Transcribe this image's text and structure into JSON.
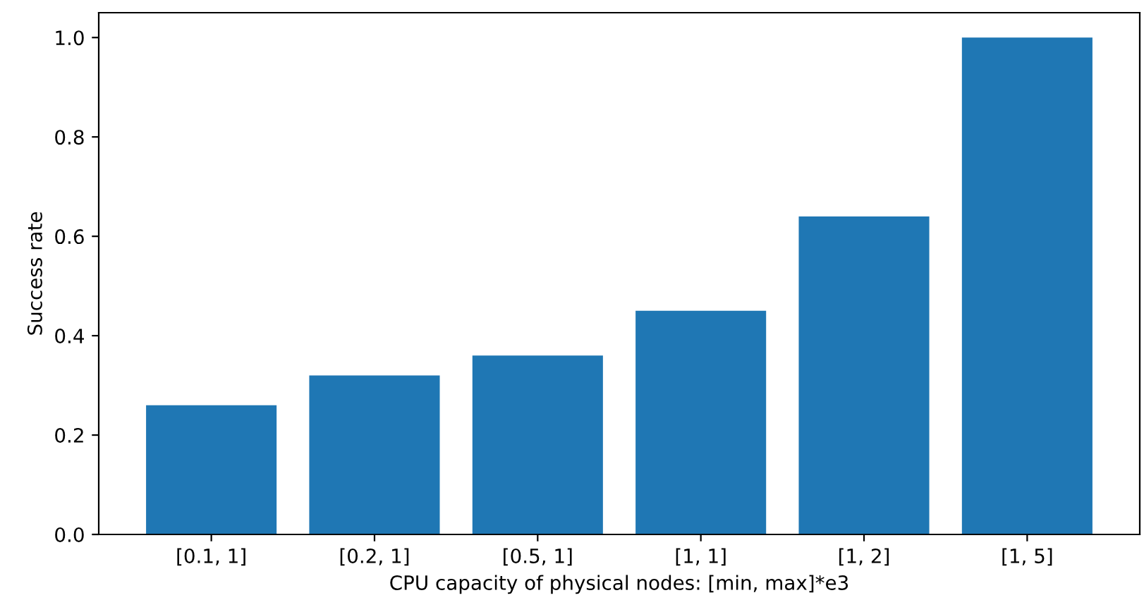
{
  "chart_data": {
    "type": "bar",
    "xlabel": "CPU capacity of physical nodes: [min, max]*e3",
    "ylabel": "Success rate",
    "categories": [
      "[0.1, 1]",
      "[0.2, 1]",
      "[0.5, 1]",
      "[1, 1]",
      "[1, 2]",
      "[1, 5]"
    ],
    "values": [
      0.26,
      0.32,
      0.36,
      0.45,
      0.64,
      1.0
    ],
    "color": "#1f77b4",
    "ylim": [
      0,
      1.05
    ],
    "yticks": [
      {
        "value": 0,
        "label": "0.0"
      },
      {
        "value": 0.2,
        "label": "0.2"
      },
      {
        "value": 0.4,
        "label": "0.4"
      },
      {
        "value": 0.6,
        "label": "0.6"
      },
      {
        "value": 0.8,
        "label": "0.8"
      },
      {
        "value": 1.0,
        "label": "1.0"
      }
    ],
    "grid": false
  }
}
